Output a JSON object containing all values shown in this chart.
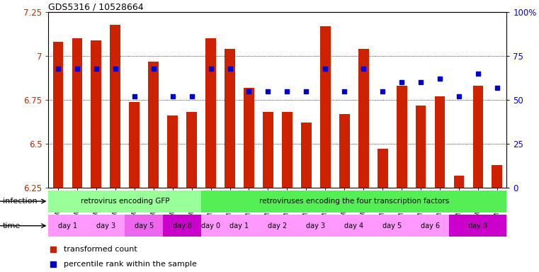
{
  "title": "GDS5316 / 10528664",
  "samples": [
    "GSM943810",
    "GSM943811",
    "GSM943812",
    "GSM943813",
    "GSM943814",
    "GSM943815",
    "GSM943816",
    "GSM943817",
    "GSM943794",
    "GSM943795",
    "GSM943796",
    "GSM943797",
    "GSM943798",
    "GSM943799",
    "GSM943800",
    "GSM943801",
    "GSM943802",
    "GSM943803",
    "GSM943804",
    "GSM943805",
    "GSM943806",
    "GSM943807",
    "GSM943808",
    "GSM943809"
  ],
  "bar_values": [
    7.08,
    7.1,
    7.09,
    7.18,
    6.74,
    6.97,
    6.66,
    6.68,
    7.1,
    7.04,
    6.82,
    6.68,
    6.68,
    6.62,
    7.17,
    6.67,
    7.04,
    6.47,
    6.83,
    6.72,
    6.77,
    6.32,
    6.83,
    6.38
  ],
  "percentile_values": [
    68,
    68,
    68,
    68,
    52,
    68,
    52,
    52,
    68,
    68,
    55,
    55,
    55,
    55,
    68,
    55,
    68,
    55,
    60,
    60,
    62,
    52,
    65,
    57
  ],
  "ylim_left": [
    6.25,
    7.25
  ],
  "bar_color": "#cc2200",
  "dot_color": "#0000cc",
  "infection_groups": [
    {
      "label": "retrovirus encoding GFP",
      "start": 0,
      "end": 8,
      "color": "#99ff99"
    },
    {
      "label": "retroviruses encoding the four transcription factors",
      "start": 8,
      "end": 24,
      "color": "#55ee55"
    }
  ],
  "time_groups": [
    {
      "label": "day 1",
      "start": 0,
      "end": 2,
      "color": "#ff99ff"
    },
    {
      "label": "day 3",
      "start": 2,
      "end": 4,
      "color": "#ff99ff"
    },
    {
      "label": "day 5",
      "start": 4,
      "end": 6,
      "color": "#ee66ee"
    },
    {
      "label": "day 8",
      "start": 6,
      "end": 8,
      "color": "#cc00cc"
    },
    {
      "label": "day 0",
      "start": 8,
      "end": 9,
      "color": "#ff99ff"
    },
    {
      "label": "day 1",
      "start": 9,
      "end": 11,
      "color": "#ff99ff"
    },
    {
      "label": "day 2",
      "start": 11,
      "end": 13,
      "color": "#ff99ff"
    },
    {
      "label": "day 3",
      "start": 13,
      "end": 15,
      "color": "#ff99ff"
    },
    {
      "label": "day 4",
      "start": 15,
      "end": 17,
      "color": "#ff99ff"
    },
    {
      "label": "day 5",
      "start": 17,
      "end": 19,
      "color": "#ff99ff"
    },
    {
      "label": "day 6",
      "start": 19,
      "end": 21,
      "color": "#ff99ff"
    },
    {
      "label": "day 8",
      "start": 21,
      "end": 24,
      "color": "#cc00cc"
    }
  ],
  "legend_items": [
    {
      "label": "transformed count",
      "color": "#cc2200",
      "marker": "s"
    },
    {
      "label": "percentile rank within the sample",
      "color": "#0000cc",
      "marker": "s"
    }
  ],
  "infection_label": "infection",
  "time_label": "time"
}
